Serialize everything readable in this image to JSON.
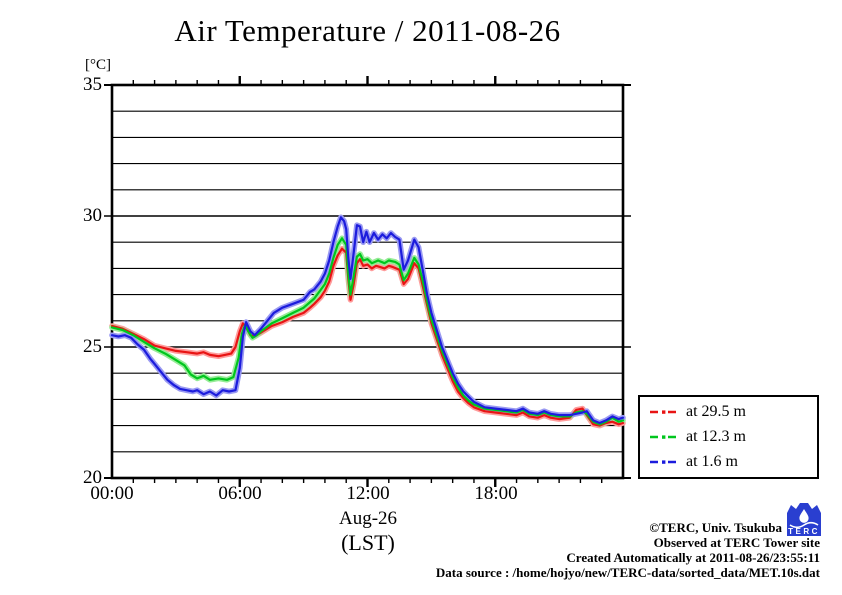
{
  "title": "Air Temperature / 2011-08-26",
  "y_axis": {
    "unit_label": "[°C]",
    "min": 20,
    "max": 35,
    "minor_step": 1,
    "major_step": 5,
    "ticks": [
      {
        "label": "35"
      },
      {
        "label": "30"
      },
      {
        "label": "25"
      },
      {
        "label": "20"
      }
    ]
  },
  "x_axis": {
    "min_hour": 0,
    "max_hour": 24,
    "minor_step_hours": 1,
    "major_step_hours": 6,
    "ticks": [
      {
        "label": "00:00"
      },
      {
        "label": "06:00"
      },
      {
        "label": "12:00"
      },
      {
        "label": "18:00"
      }
    ],
    "date_label": "Aug-26",
    "tz_label": "(LST)"
  },
  "legend": {
    "entries": [
      {
        "label": "at 29.5 m",
        "color": "#e81414",
        "halo": "#ff9c9c"
      },
      {
        "label": "at 12.3 m",
        "color": "#00c61e",
        "halo": "#96ec96"
      },
      {
        "label": "at 1.6 m",
        "color": "#1c1cdd",
        "halo": "#9a9af2"
      }
    ]
  },
  "footer": {
    "copyright": "©TERC, Univ. Tsukuba",
    "observed": "Observed at TERC Tower site",
    "created": "Created Automatically at 2011-08-26/23:55:11",
    "data_source": "Data source : /home/hojyo/new/TERC-data/sorted_data/MET.10s.dat",
    "logo_text": "TERC"
  },
  "chart_data": {
    "type": "line",
    "title": "Air Temperature / 2011-08-26",
    "xlabel": "Aug-26 (LST)",
    "ylabel": "[°C]",
    "x_unit": "hour of day (LST)",
    "xlim": [
      0,
      24
    ],
    "ylim": [
      20,
      35
    ],
    "grid": "horizontal lines every 1 °C",
    "legend_position": "outside right, below plot middle",
    "series": [
      {
        "name": "at 29.5 m",
        "height_m": 29.5,
        "color": "#e81414",
        "halo_color": "#ff9c9c",
        "points": [
          [
            0,
            25.8
          ],
          [
            0.5,
            25.7
          ],
          [
            1,
            25.5
          ],
          [
            1.5,
            25.3
          ],
          [
            2,
            25.05
          ],
          [
            2.5,
            24.95
          ],
          [
            3,
            24.85
          ],
          [
            3.5,
            24.8
          ],
          [
            4,
            24.75
          ],
          [
            4.3,
            24.8
          ],
          [
            4.6,
            24.7
          ],
          [
            5,
            24.65
          ],
          [
            5.3,
            24.7
          ],
          [
            5.6,
            24.75
          ],
          [
            5.8,
            25.0
          ],
          [
            6,
            25.6
          ],
          [
            6.15,
            25.9
          ],
          [
            6.3,
            25.75
          ],
          [
            6.5,
            25.45
          ],
          [
            6.7,
            25.4
          ],
          [
            7,
            25.55
          ],
          [
            7.5,
            25.8
          ],
          [
            8,
            25.95
          ],
          [
            8.5,
            26.15
          ],
          [
            9,
            26.3
          ],
          [
            9.3,
            26.5
          ],
          [
            9.5,
            26.65
          ],
          [
            9.8,
            26.9
          ],
          [
            10,
            27.15
          ],
          [
            10.2,
            27.5
          ],
          [
            10.4,
            28.1
          ],
          [
            10.6,
            28.5
          ],
          [
            10.8,
            28.75
          ],
          [
            11,
            28.6
          ],
          [
            11.1,
            27.6
          ],
          [
            11.2,
            26.8
          ],
          [
            11.35,
            27.4
          ],
          [
            11.5,
            28.2
          ],
          [
            11.65,
            28.35
          ],
          [
            11.8,
            28.1
          ],
          [
            12,
            28.15
          ],
          [
            12.2,
            28.0
          ],
          [
            12.4,
            28.1
          ],
          [
            12.6,
            28.05
          ],
          [
            12.8,
            28.0
          ],
          [
            13,
            28.1
          ],
          [
            13.2,
            28.05
          ],
          [
            13.5,
            27.95
          ],
          [
            13.7,
            27.4
          ],
          [
            13.9,
            27.6
          ],
          [
            14.2,
            28.2
          ],
          [
            14.4,
            28.0
          ],
          [
            14.6,
            27.3
          ],
          [
            14.8,
            26.6
          ],
          [
            15,
            25.9
          ],
          [
            15.25,
            25.3
          ],
          [
            15.5,
            24.7
          ],
          [
            15.75,
            24.2
          ],
          [
            16,
            23.7
          ],
          [
            16.25,
            23.3
          ],
          [
            16.5,
            23.05
          ],
          [
            16.75,
            22.85
          ],
          [
            17,
            22.7
          ],
          [
            17.5,
            22.55
          ],
          [
            18,
            22.5
          ],
          [
            18.5,
            22.45
          ],
          [
            19,
            22.4
          ],
          [
            19.3,
            22.5
          ],
          [
            19.6,
            22.35
          ],
          [
            20,
            22.3
          ],
          [
            20.3,
            22.4
          ],
          [
            20.6,
            22.3
          ],
          [
            21,
            22.25
          ],
          [
            21.5,
            22.3
          ],
          [
            21.8,
            22.6
          ],
          [
            22.1,
            22.65
          ],
          [
            22.3,
            22.4
          ],
          [
            22.6,
            22.05
          ],
          [
            22.9,
            22.0
          ],
          [
            23.2,
            22.1
          ],
          [
            23.5,
            22.15
          ],
          [
            23.8,
            22.05
          ],
          [
            24,
            22.1
          ]
        ]
      },
      {
        "name": "at 12.3 m",
        "height_m": 12.3,
        "color": "#00c61e",
        "halo_color": "#96ec96",
        "points": [
          [
            0,
            25.75
          ],
          [
            0.5,
            25.65
          ],
          [
            1,
            25.45
          ],
          [
            1.5,
            25.2
          ],
          [
            2,
            24.95
          ],
          [
            2.5,
            24.75
          ],
          [
            3,
            24.5
          ],
          [
            3.4,
            24.3
          ],
          [
            3.7,
            23.95
          ],
          [
            4,
            23.8
          ],
          [
            4.3,
            23.9
          ],
          [
            4.6,
            23.75
          ],
          [
            5,
            23.8
          ],
          [
            5.4,
            23.75
          ],
          [
            5.7,
            23.85
          ],
          [
            5.95,
            24.6
          ],
          [
            6.1,
            25.5
          ],
          [
            6.25,
            25.85
          ],
          [
            6.4,
            25.6
          ],
          [
            6.6,
            25.35
          ],
          [
            6.8,
            25.45
          ],
          [
            7,
            25.6
          ],
          [
            7.5,
            25.9
          ],
          [
            8,
            26.1
          ],
          [
            8.5,
            26.3
          ],
          [
            9,
            26.5
          ],
          [
            9.5,
            26.85
          ],
          [
            10,
            27.4
          ],
          [
            10.2,
            27.8
          ],
          [
            10.4,
            28.4
          ],
          [
            10.6,
            28.9
          ],
          [
            10.8,
            29.15
          ],
          [
            11,
            28.9
          ],
          [
            11.1,
            27.8
          ],
          [
            11.2,
            27.0
          ],
          [
            11.35,
            27.7
          ],
          [
            11.5,
            28.45
          ],
          [
            11.65,
            28.55
          ],
          [
            11.8,
            28.3
          ],
          [
            12,
            28.35
          ],
          [
            12.2,
            28.2
          ],
          [
            12.5,
            28.3
          ],
          [
            12.8,
            28.2
          ],
          [
            13,
            28.3
          ],
          [
            13.3,
            28.25
          ],
          [
            13.5,
            28.15
          ],
          [
            13.7,
            27.55
          ],
          [
            13.9,
            27.8
          ],
          [
            14.2,
            28.4
          ],
          [
            14.4,
            28.15
          ],
          [
            14.6,
            27.5
          ],
          [
            14.8,
            26.75
          ],
          [
            15,
            26.05
          ],
          [
            15.25,
            25.45
          ],
          [
            15.5,
            24.85
          ],
          [
            15.75,
            24.35
          ],
          [
            16,
            23.85
          ],
          [
            16.25,
            23.45
          ],
          [
            16.5,
            23.15
          ],
          [
            16.75,
            22.95
          ],
          [
            17,
            22.8
          ],
          [
            17.5,
            22.65
          ],
          [
            18,
            22.6
          ],
          [
            18.5,
            22.55
          ],
          [
            19,
            22.5
          ],
          [
            19.3,
            22.6
          ],
          [
            19.6,
            22.45
          ],
          [
            20,
            22.4
          ],
          [
            20.3,
            22.5
          ],
          [
            20.6,
            22.4
          ],
          [
            21,
            22.35
          ],
          [
            21.5,
            22.35
          ],
          [
            21.8,
            22.5
          ],
          [
            22.1,
            22.55
          ],
          [
            22.3,
            22.45
          ],
          [
            22.6,
            22.15
          ],
          [
            22.9,
            22.05
          ],
          [
            23.2,
            22.15
          ],
          [
            23.5,
            22.3
          ],
          [
            23.8,
            22.15
          ],
          [
            24,
            22.2
          ]
        ]
      },
      {
        "name": "at 1.6 m",
        "height_m": 1.6,
        "color": "#1c1cdd",
        "halo_color": "#9a9af2",
        "points": [
          [
            0,
            25.45
          ],
          [
            0.3,
            25.4
          ],
          [
            0.6,
            25.45
          ],
          [
            0.9,
            25.35
          ],
          [
            1.2,
            25.1
          ],
          [
            1.5,
            24.9
          ],
          [
            1.8,
            24.55
          ],
          [
            2,
            24.35
          ],
          [
            2.3,
            24.05
          ],
          [
            2.6,
            23.75
          ],
          [
            2.9,
            23.55
          ],
          [
            3.2,
            23.4
          ],
          [
            3.5,
            23.35
          ],
          [
            3.8,
            23.3
          ],
          [
            4,
            23.35
          ],
          [
            4.3,
            23.2
          ],
          [
            4.6,
            23.3
          ],
          [
            4.9,
            23.15
          ],
          [
            5.2,
            23.35
          ],
          [
            5.5,
            23.3
          ],
          [
            5.8,
            23.35
          ],
          [
            6,
            24.2
          ],
          [
            6.15,
            25.4
          ],
          [
            6.3,
            25.95
          ],
          [
            6.5,
            25.6
          ],
          [
            6.7,
            25.45
          ],
          [
            7,
            25.7
          ],
          [
            7.3,
            26.0
          ],
          [
            7.6,
            26.3
          ],
          [
            8,
            26.5
          ],
          [
            8.5,
            26.65
          ],
          [
            9,
            26.8
          ],
          [
            9.3,
            27.1
          ],
          [
            9.5,
            27.2
          ],
          [
            9.8,
            27.5
          ],
          [
            10,
            27.8
          ],
          [
            10.2,
            28.3
          ],
          [
            10.4,
            29.0
          ],
          [
            10.6,
            29.6
          ],
          [
            10.75,
            29.95
          ],
          [
            10.9,
            29.8
          ],
          [
            11,
            29.5
          ],
          [
            11.1,
            28.4
          ],
          [
            11.2,
            27.6
          ],
          [
            11.35,
            28.6
          ],
          [
            11.5,
            29.65
          ],
          [
            11.65,
            29.6
          ],
          [
            11.8,
            29.0
          ],
          [
            11.95,
            29.4
          ],
          [
            12.1,
            29.0
          ],
          [
            12.3,
            29.35
          ],
          [
            12.5,
            29.1
          ],
          [
            12.7,
            29.3
          ],
          [
            12.9,
            29.15
          ],
          [
            13.1,
            29.35
          ],
          [
            13.3,
            29.2
          ],
          [
            13.5,
            29.1
          ],
          [
            13.7,
            27.95
          ],
          [
            13.9,
            28.3
          ],
          [
            14.2,
            29.1
          ],
          [
            14.4,
            28.8
          ],
          [
            14.6,
            27.9
          ],
          [
            14.8,
            27.0
          ],
          [
            15,
            26.3
          ],
          [
            15.25,
            25.65
          ],
          [
            15.5,
            25.0
          ],
          [
            15.75,
            24.5
          ],
          [
            16,
            24.0
          ],
          [
            16.25,
            23.6
          ],
          [
            16.5,
            23.3
          ],
          [
            16.75,
            23.1
          ],
          [
            17,
            22.9
          ],
          [
            17.5,
            22.7
          ],
          [
            18,
            22.65
          ],
          [
            18.5,
            22.6
          ],
          [
            19,
            22.55
          ],
          [
            19.3,
            22.65
          ],
          [
            19.6,
            22.5
          ],
          [
            20,
            22.45
          ],
          [
            20.3,
            22.55
          ],
          [
            20.6,
            22.45
          ],
          [
            21,
            22.4
          ],
          [
            21.5,
            22.4
          ],
          [
            21.8,
            22.45
          ],
          [
            22.1,
            22.5
          ],
          [
            22.3,
            22.55
          ],
          [
            22.6,
            22.2
          ],
          [
            22.9,
            22.1
          ],
          [
            23.2,
            22.2
          ],
          [
            23.5,
            22.35
          ],
          [
            23.8,
            22.25
          ],
          [
            24,
            22.3
          ]
        ]
      }
    ]
  }
}
